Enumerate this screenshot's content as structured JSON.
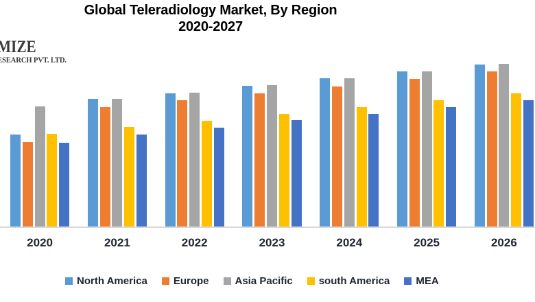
{
  "page": {
    "background": "#ffffff"
  },
  "logo": {
    "line1": "MIZE",
    "line2": "ESEARCH PVT. LTD.",
    "color": "#3a3a3a"
  },
  "title": {
    "line1": "Global Teleradiology Market, By Region",
    "line2": "2020-2027"
  },
  "axis": {
    "baseline_color": "#d9d9d9",
    "label_color": "#1f2430"
  },
  "chart_data": {
    "type": "bar",
    "title": "Global Teleradiology Market, By Region 2020-2027",
    "xlabel": "",
    "ylabel": "",
    "value_axis_visible": false,
    "grid": false,
    "legend_position": "bottom",
    "unit": "relative bar height in px (no value axis shown in image)",
    "categories": [
      "2020",
      "2021",
      "2022",
      "2023",
      "2024",
      "2025",
      "2026"
    ],
    "series": [
      {
        "name": "North America",
        "color": "#5B9BD5",
        "values": [
          134,
          186,
          194,
          205,
          216,
          226,
          236
        ]
      },
      {
        "name": "Europe",
        "color": "#ED7D31",
        "values": [
          123,
          174,
          184,
          194,
          204,
          215,
          226
        ]
      },
      {
        "name": "Asia Pacific",
        "color": "#A5A5A5",
        "values": [
          175,
          186,
          195,
          206,
          216,
          226,
          237
        ]
      },
      {
        "name": "south America",
        "color": "#FFC000",
        "values": [
          135,
          145,
          154,
          164,
          174,
          184,
          194
        ]
      },
      {
        "name": "MEA",
        "color": "#4472C4",
        "values": [
          122,
          134,
          144,
          155,
          164,
          174,
          184
        ]
      }
    ]
  }
}
